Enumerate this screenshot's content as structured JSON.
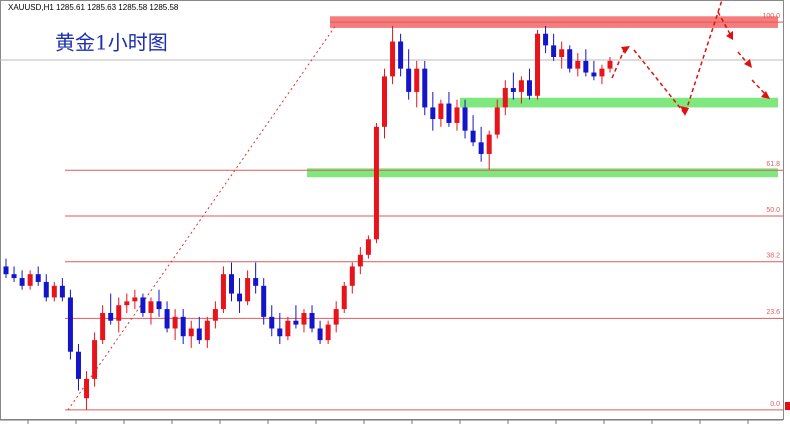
{
  "chart_data": {
    "type": "candlestick",
    "header": "XAUUSD,H1  1285.61 1285.63 1285.58 1285.58",
    "annotation": "黄金1小时图",
    "up_color": "#e8141c",
    "down_color": "#1414c8",
    "fib_color": "#e25a5a",
    "ylim": [
      -2.6,
      105.7
    ],
    "yticks": [
      {
        "value": 0,
        "label": "0.0"
      },
      {
        "value": 23.6,
        "label": "23.6"
      },
      {
        "value": 38.2,
        "label": "38.2"
      },
      {
        "value": 50,
        "label": "50.0"
      },
      {
        "value": 61.8,
        "label": "61.8"
      },
      {
        "value": 100,
        "label": "100.0"
      }
    ],
    "zones": [
      {
        "from": 98.5,
        "to": 101.5,
        "color": "#f47c7c"
      },
      {
        "from": 78,
        "to": 80.5,
        "color": "#7ee87e"
      },
      {
        "from": 60,
        "to": 62.3,
        "color": "#7ee87e"
      }
    ],
    "open": [
      37,
      35,
      34,
      32,
      35,
      33,
      29,
      32,
      29,
      15,
      3,
      8,
      18,
      25,
      23,
      27,
      28,
      29,
      25,
      28,
      26,
      21,
      24,
      19,
      21,
      18,
      23,
      26,
      35,
      30,
      28,
      34,
      32,
      24,
      21,
      19,
      23,
      22,
      25,
      21,
      18,
      22,
      26,
      32,
      37,
      40,
      44,
      73,
      86,
      95,
      88,
      82,
      88,
      78,
      75,
      79,
      74,
      78,
      72,
      69,
      66,
      71,
      78,
      83,
      82,
      85,
      81,
      97,
      94,
      91,
      93,
      88,
      90,
      87,
      86,
      88
    ],
    "high": [
      39,
      37,
      36,
      36,
      37,
      35,
      33,
      34,
      31,
      17,
      10,
      20,
      27,
      30,
      29,
      30,
      31,
      30,
      29,
      31,
      28,
      26,
      26,
      23,
      24,
      24,
      28,
      37,
      38,
      34,
      36,
      38,
      34,
      27,
      25,
      24,
      27,
      26,
      27,
      23,
      23,
      28,
      33,
      38,
      42,
      45,
      74,
      88,
      99,
      97,
      93,
      90,
      90,
      82,
      80,
      82,
      80,
      80,
      76,
      73,
      72,
      80,
      85,
      87,
      86,
      88,
      98,
      99,
      97,
      95,
      94,
      92,
      93,
      90,
      89,
      91
    ],
    "low": [
      34,
      33,
      31,
      31,
      32,
      28,
      28,
      28,
      13,
      5,
      0,
      6,
      17,
      22,
      20,
      25,
      26,
      24,
      22,
      24,
      20,
      18,
      17,
      16,
      17,
      16,
      21,
      25,
      28,
      25,
      27,
      30,
      22,
      19,
      17,
      18,
      21,
      20,
      20,
      17,
      17,
      20,
      25,
      30,
      35,
      39,
      43,
      70,
      84,
      86,
      80,
      78,
      76,
      72,
      73,
      73,
      72,
      70,
      68,
      64,
      62,
      70,
      76,
      80,
      79,
      80,
      80,
      92,
      90,
      88,
      87,
      86,
      86,
      85,
      84,
      87
    ],
    "close": [
      35,
      34,
      32,
      35,
      33,
      29,
      32,
      29,
      15,
      8,
      8,
      18,
      25,
      23,
      27,
      28,
      29,
      25,
      28,
      26,
      21,
      24,
      19,
      21,
      18,
      23,
      26,
      35,
      30,
      28,
      34,
      32,
      24,
      21,
      19,
      23,
      22,
      25,
      21,
      18,
      22,
      26,
      32,
      37,
      40,
      44,
      73,
      86,
      95,
      88,
      82,
      88,
      78,
      75,
      79,
      74,
      78,
      72,
      69,
      66,
      71,
      78,
      83,
      82,
      85,
      81,
      97,
      94,
      91,
      93,
      88,
      90,
      87,
      86,
      88,
      90
    ]
  }
}
